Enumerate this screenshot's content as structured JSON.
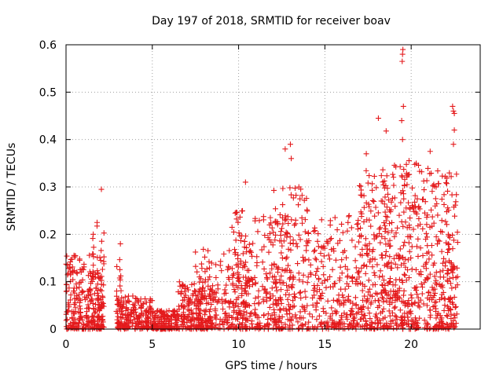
{
  "chart_data": {
    "type": "scatter",
    "title": "Day 197 of 2018, SRMTID for receiver boav",
    "xlabel": "GPS time / hours",
    "ylabel": "SRMTID / TECUs",
    "xlim": [
      0,
      24
    ],
    "ylim": [
      0,
      0.6
    ],
    "x_ticks": [
      0,
      5,
      10,
      15,
      20
    ],
    "x_tick_labels": [
      "0",
      "5",
      "10",
      "15",
      "20"
    ],
    "y_ticks": [
      0,
      0.1,
      0.2,
      0.3,
      0.4,
      0.5,
      0.6
    ],
    "y_tick_labels": [
      "0",
      "0.1",
      "0.2",
      "0.3",
      "0.4",
      "0.5",
      "0.6"
    ],
    "grid": true,
    "marker": "plus",
    "series_color": "#e41a1c",
    "highlight_points": [
      {
        "x": 2.05,
        "y": 0.295
      },
      {
        "x": 1.8,
        "y": 0.225
      },
      {
        "x": 3.15,
        "y": 0.18
      },
      {
        "x": 10.4,
        "y": 0.31
      },
      {
        "x": 12.7,
        "y": 0.38
      },
      {
        "x": 13.0,
        "y": 0.39
      },
      {
        "x": 13.05,
        "y": 0.36
      },
      {
        "x": 17.4,
        "y": 0.37
      },
      {
        "x": 18.1,
        "y": 0.445
      },
      {
        "x": 18.55,
        "y": 0.418
      },
      {
        "x": 19.5,
        "y": 0.58
      },
      {
        "x": 19.52,
        "y": 0.59
      },
      {
        "x": 19.48,
        "y": 0.565
      },
      {
        "x": 19.55,
        "y": 0.47
      },
      {
        "x": 19.45,
        "y": 0.44
      },
      {
        "x": 19.5,
        "y": 0.4
      },
      {
        "x": 21.1,
        "y": 0.375
      },
      {
        "x": 22.4,
        "y": 0.47
      },
      {
        "x": 22.45,
        "y": 0.46
      },
      {
        "x": 22.5,
        "y": 0.455
      },
      {
        "x": 22.5,
        "y": 0.42
      },
      {
        "x": 22.45,
        "y": 0.39
      }
    ],
    "density_profile": [
      {
        "x0": 0.0,
        "x1": 2.2,
        "ymax": 0.16,
        "n": 260
      },
      {
        "x0": 1.5,
        "x1": 2.2,
        "ymax": 0.24,
        "n": 40
      },
      {
        "x0": 2.9,
        "x1": 3.3,
        "ymax": 0.15,
        "n": 30
      },
      {
        "x0": 3.0,
        "x1": 5.0,
        "ymax": 0.07,
        "n": 180
      },
      {
        "x0": 5.0,
        "x1": 6.5,
        "ymax": 0.04,
        "n": 150
      },
      {
        "x0": 6.5,
        "x1": 8.5,
        "ymax": 0.1,
        "n": 180
      },
      {
        "x0": 7.5,
        "x1": 10.0,
        "ymax": 0.17,
        "n": 160
      },
      {
        "x0": 9.6,
        "x1": 10.6,
        "ymax": 0.27,
        "n": 60
      },
      {
        "x0": 10.0,
        "x1": 12.5,
        "ymax": 0.24,
        "n": 200
      },
      {
        "x0": 12.0,
        "x1": 14.0,
        "ymax": 0.3,
        "n": 180
      },
      {
        "x0": 14.0,
        "x1": 17.0,
        "ymax": 0.24,
        "n": 240
      },
      {
        "x0": 17.0,
        "x1": 19.0,
        "ymax": 0.34,
        "n": 260
      },
      {
        "x0": 19.0,
        "x1": 20.5,
        "ymax": 0.36,
        "n": 200
      },
      {
        "x0": 20.5,
        "x1": 22.7,
        "ymax": 0.34,
        "n": 260
      }
    ]
  }
}
